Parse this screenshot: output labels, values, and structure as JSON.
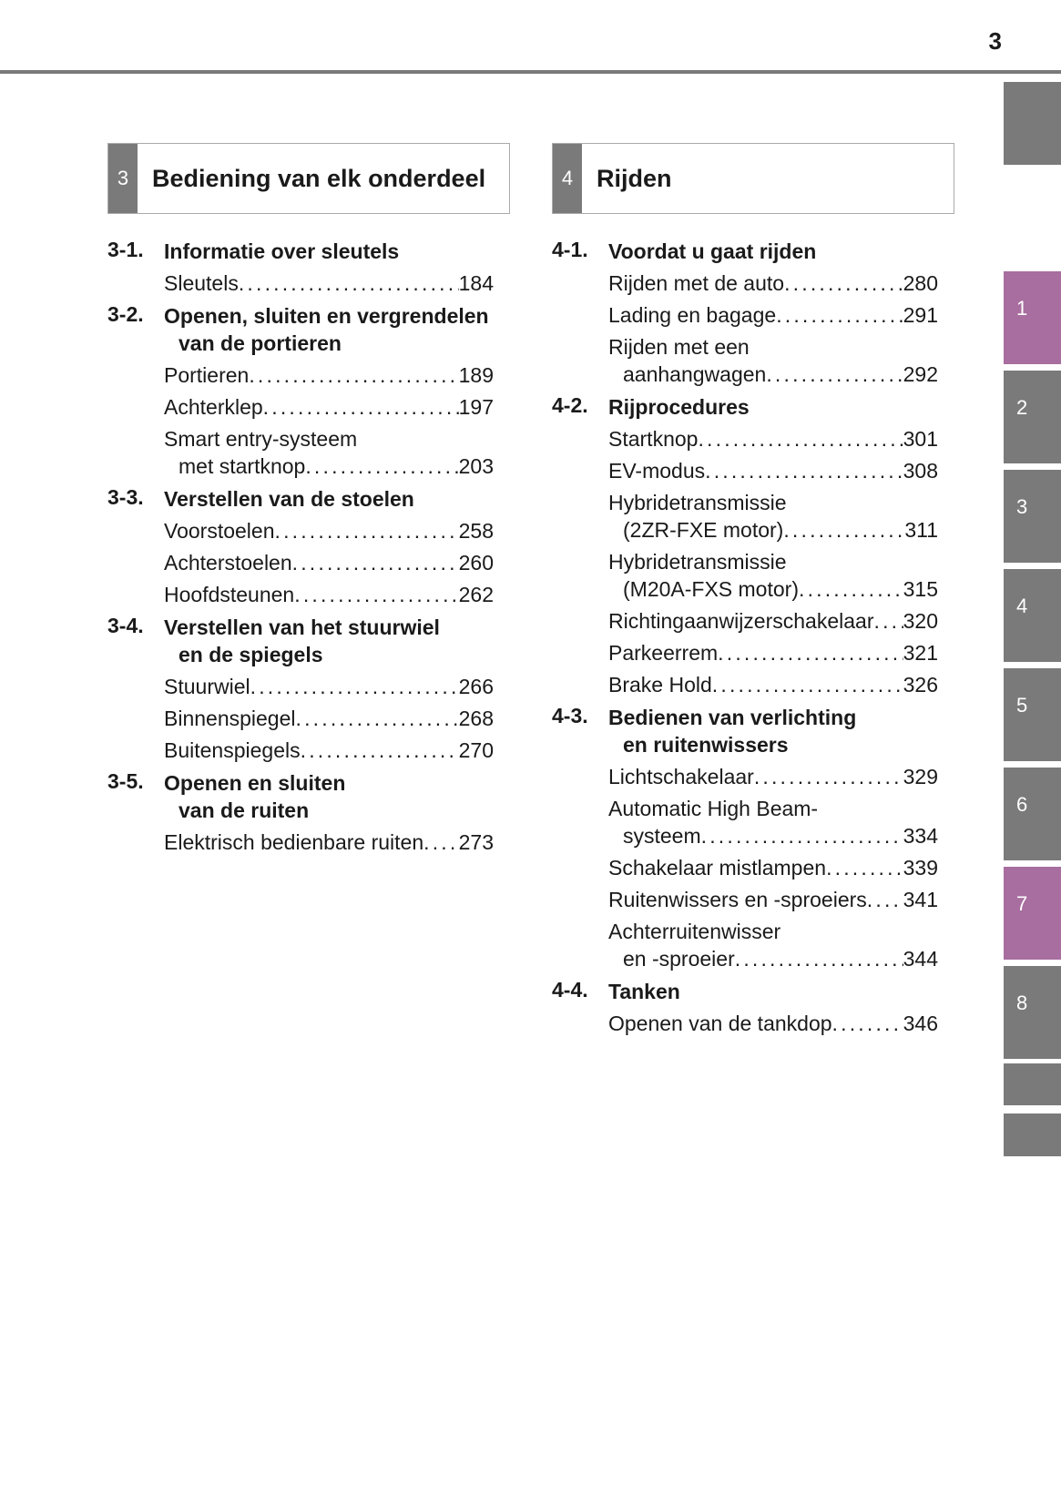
{
  "page_number": "3",
  "colors": {
    "tab_gray": "#7a7a7a",
    "tab_accent": "#a86e9f"
  },
  "side_tabs": [
    {
      "label": "",
      "accent": false
    },
    {
      "label": "1",
      "accent": true
    },
    {
      "label": "2",
      "accent": false
    },
    {
      "label": "3",
      "accent": false
    },
    {
      "label": "4",
      "accent": false
    },
    {
      "label": "5",
      "accent": false
    },
    {
      "label": "6",
      "accent": false
    },
    {
      "label": "7",
      "accent": true
    },
    {
      "label": "8",
      "accent": false
    },
    {
      "label": "",
      "accent": false
    },
    {
      "label": "",
      "accent": false
    }
  ],
  "chapters": [
    {
      "number": "3",
      "title": "Bediening van elk onderdeel",
      "sections": [
        {
          "num": "3-1.",
          "lines": [
            "Informatie over sleutels"
          ],
          "items": [
            {
              "lines": [
                "Sleutels"
              ],
              "page": "184"
            }
          ]
        },
        {
          "num": "3-2.",
          "lines": [
            "Openen, sluiten en vergrendelen",
            "van de portieren"
          ],
          "items": [
            {
              "lines": [
                "Portieren"
              ],
              "page": "189"
            },
            {
              "lines": [
                "Achterklep"
              ],
              "page": "197"
            },
            {
              "lines": [
                "Smart entry-systeem",
                "met startknop"
              ],
              "page": "203"
            }
          ]
        },
        {
          "num": "3-3.",
          "lines": [
            "Verstellen van de stoelen"
          ],
          "items": [
            {
              "lines": [
                "Voorstoelen"
              ],
              "page": "258"
            },
            {
              "lines": [
                "Achterstoelen"
              ],
              "page": "260"
            },
            {
              "lines": [
                "Hoofdsteunen"
              ],
              "page": "262"
            }
          ]
        },
        {
          "num": "3-4.",
          "lines": [
            "Verstellen van het stuurwiel",
            "en de spiegels"
          ],
          "items": [
            {
              "lines": [
                "Stuurwiel"
              ],
              "page": "266"
            },
            {
              "lines": [
                "Binnenspiegel"
              ],
              "page": "268"
            },
            {
              "lines": [
                "Buitenspiegels"
              ],
              "page": "270"
            }
          ]
        },
        {
          "num": "3-5.",
          "lines": [
            "Openen en sluiten",
            "van de ruiten"
          ],
          "items": [
            {
              "lines": [
                "Elektrisch bedienbare ruiten"
              ],
              "page": "273"
            }
          ]
        }
      ]
    },
    {
      "number": "4",
      "title": "Rijden",
      "sections": [
        {
          "num": "4-1.",
          "lines": [
            "Voordat u gaat rijden"
          ],
          "items": [
            {
              "lines": [
                "Rijden met de auto"
              ],
              "page": "280"
            },
            {
              "lines": [
                "Lading en bagage"
              ],
              "page": "291"
            },
            {
              "lines": [
                "Rijden met een",
                "aanhangwagen"
              ],
              "page": "292"
            }
          ]
        },
        {
          "num": "4-2.",
          "lines": [
            "Rijprocedures"
          ],
          "items": [
            {
              "lines": [
                "Startknop"
              ],
              "page": "301"
            },
            {
              "lines": [
                "EV-modus"
              ],
              "page": "308"
            },
            {
              "lines": [
                "Hybridetransmissie",
                "(2ZR-FXE motor)"
              ],
              "page": "311"
            },
            {
              "lines": [
                "Hybridetransmissie",
                "(M20A-FXS motor)"
              ],
              "page": "315"
            },
            {
              "lines": [
                "Richtingaanwijzerschakelaar"
              ],
              "page": "320"
            },
            {
              "lines": [
                "Parkeerrem"
              ],
              "page": "321"
            },
            {
              "lines": [
                "Brake Hold"
              ],
              "page": "326"
            }
          ]
        },
        {
          "num": "4-3.",
          "lines": [
            "Bedienen van verlichting",
            "en ruitenwissers"
          ],
          "items": [
            {
              "lines": [
                "Lichtschakelaar"
              ],
              "page": "329"
            },
            {
              "lines": [
                "Automatic High Beam-",
                "systeem"
              ],
              "page": "334"
            },
            {
              "lines": [
                "Schakelaar mistlampen"
              ],
              "page": "339"
            },
            {
              "lines": [
                "Ruitenwissers en -sproeiers"
              ],
              "page": "341"
            },
            {
              "lines": [
                "Achterruitenwisser",
                "en -sproeier"
              ],
              "page": "344"
            }
          ]
        },
        {
          "num": "4-4.",
          "lines": [
            "Tanken"
          ],
          "items": [
            {
              "lines": [
                "Openen van de tankdop"
              ],
              "page": "346"
            }
          ]
        }
      ]
    }
  ]
}
